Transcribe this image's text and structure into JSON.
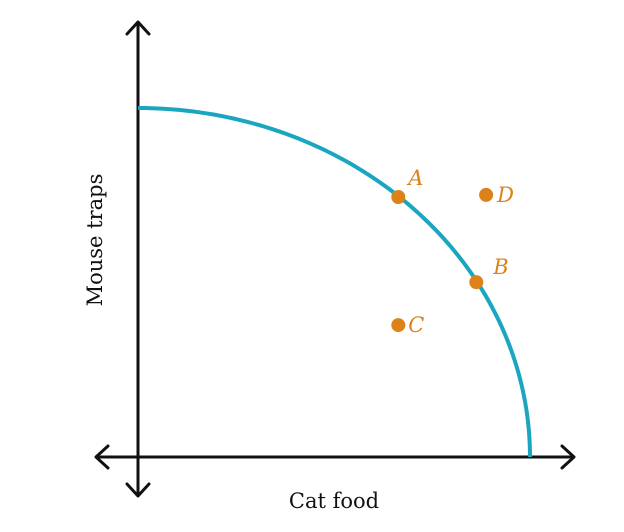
{
  "chart_data": {
    "type": "scatter",
    "title": "",
    "xlabel": "Cat food",
    "ylabel": "Mouse traps",
    "xlim": [
      0,
      100
    ],
    "ylim": [
      0,
      100
    ],
    "grid": false,
    "frontier": {
      "shape": "quarter-ellipse",
      "x_intercept": 100,
      "y_intercept": 100,
      "color": "#1aa6c0"
    },
    "point_color": "#dd8218",
    "points": [
      {
        "label": "A",
        "x": 66.4,
        "y": 74.5
      },
      {
        "label": "B",
        "x": 86.3,
        "y": 50.1
      },
      {
        "label": "C",
        "x": 66.4,
        "y": 37.8
      },
      {
        "label": "D",
        "x": 88.8,
        "y": 75.1
      }
    ]
  }
}
